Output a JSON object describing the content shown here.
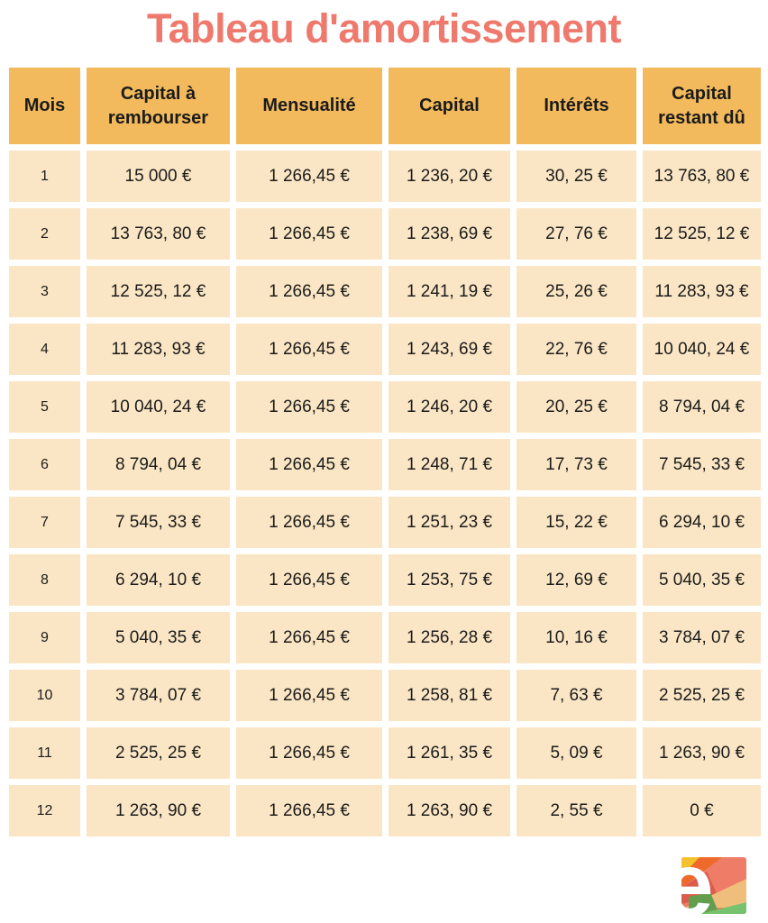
{
  "title": "Tableau d'amortissement",
  "colors": {
    "title": "#EE796C",
    "header_bg": "#F2BA5C",
    "cell_bg": "#FAE6C4",
    "text": "#1B1B1B",
    "background": "#FFFFFF"
  },
  "chart_data": {
    "type": "table",
    "title": "Tableau d'amortissement",
    "columns": [
      "Mois",
      "Capital à rembourser",
      "Mensualité",
      "Capital",
      "Intérêts",
      "Capital restant dû"
    ],
    "rows": [
      [
        "1",
        "15 000 €",
        "1 266,45 €",
        "1 236, 20 €",
        "30, 25 €",
        "13 763, 80 €"
      ],
      [
        "2",
        "13 763, 80 €",
        "1 266,45 €",
        "1 238, 69 €",
        "27, 76 €",
        "12 525, 12 €"
      ],
      [
        "3",
        "12 525, 12 €",
        "1 266,45 €",
        "1 241, 19 €",
        "25, 26 €",
        "11 283, 93 €"
      ],
      [
        "4",
        "11 283, 93 €",
        "1 266,45 €",
        "1 243, 69 €",
        "22, 76 €",
        "10 040, 24 €"
      ],
      [
        "5",
        "10 040, 24 €",
        "1 266,45 €",
        "1 246, 20 €",
        "20, 25 €",
        "8 794, 04 €"
      ],
      [
        "6",
        "8 794, 04 €",
        "1 266,45 €",
        "1 248, 71 €",
        "17, 73 €",
        "7 545, 33 €"
      ],
      [
        "7",
        "7 545, 33 €",
        "1 266,45 €",
        "1 251, 23 €",
        "15, 22 €",
        "6 294, 10 €"
      ],
      [
        "8",
        "6 294, 10 €",
        "1 266,45 €",
        "1 253, 75 €",
        "12, 69 €",
        "5 040, 35 €"
      ],
      [
        "9",
        "5 040, 35 €",
        "1 266,45 €",
        "1 256, 28 €",
        "10, 16 €",
        "3 784, 07 €"
      ],
      [
        "10",
        "3 784, 07 €",
        "1 266,45 €",
        "1 258, 81 €",
        "7, 63 €",
        "2 525, 25 €"
      ],
      [
        "11",
        "2 525, 25 €",
        "1 266,45 €",
        "1 261, 35 €",
        "5, 09 €",
        "1 263, 90 €"
      ],
      [
        "12",
        "1 263, 90 €",
        "1 266,45 €",
        "1 263, 90 €",
        "2, 55 €",
        "0 €"
      ]
    ]
  },
  "logo": {
    "letter": "e",
    "colors": {
      "salmon": "#EE7C67",
      "yellow": "#F6C12F",
      "orange": "#ED6A2B",
      "dark_red": "#DB5C4C",
      "tan": "#F0BE7C",
      "dark_green": "#639E4F",
      "bright_green": "#77C26C"
    }
  }
}
